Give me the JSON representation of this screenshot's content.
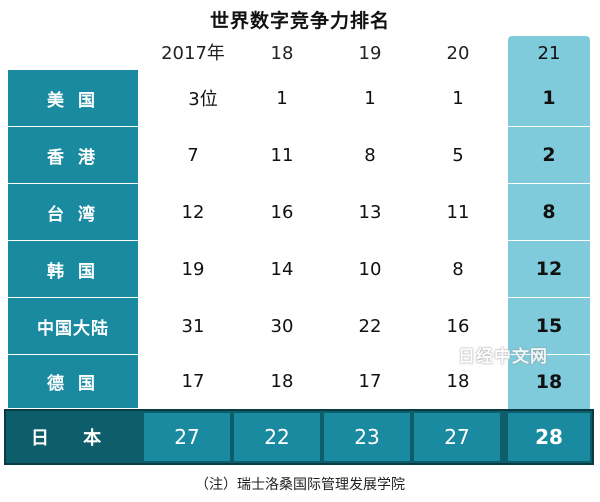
{
  "title": "世界数字竞争力排名",
  "years": [
    "2017年",
    "18",
    "19",
    "20",
    "21"
  ],
  "rows": [
    {
      "name": "美 国",
      "values": [
        "3位",
        "1",
        "1",
        "1",
        "1"
      ]
    },
    {
      "name": "香 港",
      "values": [
        "7",
        "11",
        "8",
        "5",
        "2"
      ]
    },
    {
      "name": "台 湾",
      "values": [
        "12",
        "16",
        "13",
        "11",
        "8"
      ]
    },
    {
      "name": "韩 国",
      "values": [
        "19",
        "14",
        "10",
        "8",
        "12"
      ]
    },
    {
      "name": "中国大陆",
      "values": [
        "31",
        "30",
        "22",
        "16",
        "15"
      ]
    },
    {
      "name": "德 国",
      "values": [
        "17",
        "18",
        "17",
        "18",
        "18"
      ]
    }
  ],
  "japan": {
    "name": "日 本",
    "values": [
      "27",
      "22",
      "23",
      "27",
      "28"
    ]
  },
  "note": "（注）瑞士洛桑国际管理发展学院",
  "watermark": "日经中文网",
  "colors": {
    "label_bg": "#1a8aa0",
    "highlight": "#7fcbdc",
    "japan_bg": "#0e5d6b"
  }
}
